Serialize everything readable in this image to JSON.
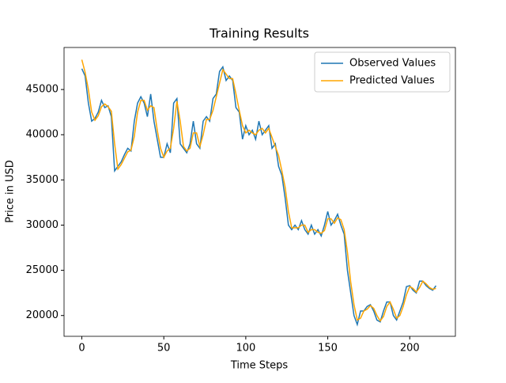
{
  "chart_data": {
    "type": "line",
    "title": "Training Results",
    "xlabel": "Time Steps",
    "ylabel": "Price in USD",
    "x": [
      0,
      2,
      4,
      6,
      8,
      10,
      12,
      14,
      16,
      18,
      20,
      22,
      24,
      26,
      28,
      30,
      32,
      34,
      36,
      38,
      40,
      42,
      44,
      46,
      48,
      50,
      52,
      54,
      56,
      58,
      60,
      62,
      64,
      66,
      68,
      70,
      72,
      74,
      76,
      78,
      80,
      82,
      84,
      86,
      88,
      90,
      92,
      94,
      96,
      98,
      100,
      102,
      104,
      106,
      108,
      110,
      112,
      114,
      116,
      118,
      120,
      122,
      124,
      126,
      128,
      130,
      132,
      134,
      136,
      138,
      140,
      142,
      144,
      146,
      148,
      150,
      152,
      154,
      156,
      158,
      160,
      162,
      164,
      166,
      168,
      170,
      172,
      174,
      176,
      178,
      180,
      182,
      184,
      186,
      188,
      190,
      192,
      194,
      196,
      198,
      200,
      202,
      204,
      206,
      208,
      210,
      212,
      214,
      216
    ],
    "series": [
      {
        "name": "Observed Values",
        "color": "#1f77b4",
        "values": [
          47300,
          46500,
          43500,
          41500,
          41800,
          42500,
          43800,
          43000,
          43200,
          42000,
          36000,
          36500,
          37000,
          37800,
          38500,
          38200,
          41500,
          43500,
          44200,
          43500,
          42000,
          44500,
          41500,
          39500,
          37500,
          37500,
          39000,
          38000,
          43500,
          44000,
          39000,
          38500,
          38000,
          39000,
          41500,
          39000,
          38500,
          41500,
          42000,
          41500,
          44000,
          44500,
          47000,
          47500,
          46000,
          46500,
          46000,
          43000,
          42500,
          39500,
          41000,
          40000,
          40500,
          39500,
          41500,
          40000,
          40500,
          41000,
          38500,
          39000,
          36500,
          35500,
          33000,
          30000,
          29500,
          30000,
          29500,
          30500,
          29500,
          29000,
          30000,
          29000,
          29500,
          28800,
          30000,
          31500,
          30000,
          30500,
          31200,
          30000,
          29000,
          25000,
          22500,
          20000,
          19000,
          20500,
          20500,
          21000,
          21200,
          20500,
          19500,
          19300,
          20500,
          21500,
          21500,
          20000,
          19500,
          20500,
          21500,
          23200,
          23300,
          22800,
          22500,
          23800,
          23800,
          23300,
          23000,
          22800,
          23300
        ]
      },
      {
        "name": "Predicted Values",
        "color": "#ffa500",
        "values": [
          48300,
          46900,
          45000,
          42500,
          41600,
          42100,
          43100,
          43400,
          43100,
          42600,
          39000,
          36200,
          36700,
          37400,
          38100,
          38300,
          39800,
          42500,
          43800,
          43800,
          42700,
          43200,
          43000,
          40500,
          38500,
          37500,
          38200,
          38500,
          40700,
          43700,
          41500,
          38700,
          38200,
          38500,
          40200,
          40200,
          38700,
          40000,
          41700,
          41700,
          42700,
          44200,
          45700,
          47200,
          46700,
          46200,
          46200,
          44500,
          42700,
          41000,
          40200,
          40500,
          40200,
          40000,
          40500,
          40700,
          40200,
          40700,
          39700,
          38700,
          37700,
          36000,
          34200,
          31500,
          29700,
          29700,
          29700,
          30000,
          30000,
          29200,
          29500,
          29500,
          29200,
          29100,
          29400,
          30700,
          30700,
          30200,
          30800,
          30600,
          29500,
          27000,
          23700,
          21200,
          19500,
          19700,
          20500,
          20700,
          21100,
          20800,
          20000,
          19400,
          19900,
          21000,
          21500,
          20700,
          19700,
          20000,
          21000,
          22300,
          23200,
          23000,
          22600,
          23100,
          23800,
          23500,
          23100,
          22900,
          23000
        ]
      }
    ],
    "xlim": [
      -10.85,
      227.85
    ],
    "ylim": [
      17700,
      49650
    ],
    "xticks": [
      0,
      50,
      100,
      150,
      200
    ],
    "yticks": [
      20000,
      25000,
      30000,
      35000,
      40000,
      45000
    ],
    "legend": "upper right"
  }
}
